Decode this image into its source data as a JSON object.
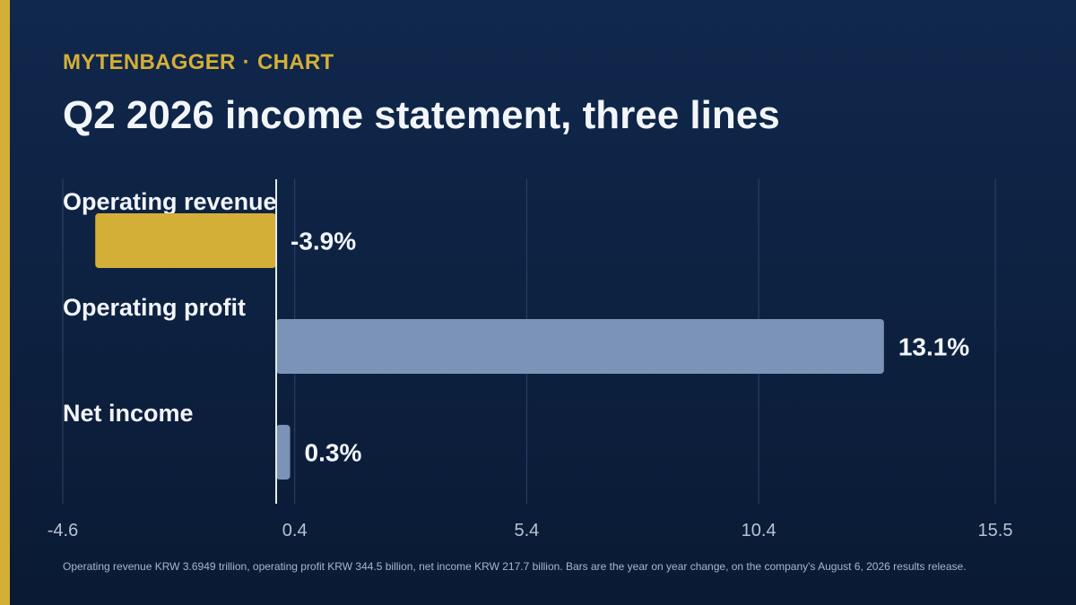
{
  "header": {
    "brand": "MYTENBAGGER",
    "separator": "·",
    "section": "CHART",
    "title": "Q2 2026 income statement, three lines"
  },
  "footnote": "Operating revenue KRW 3.6949 trillion, operating profit KRW 344.5 billion, net income KRW 217.7 billion. Bars are the year on year change, on the company's August 6, 2026 results release.",
  "colors": {
    "background_top": "#10284d",
    "background_bottom": "#0a1a34",
    "accent": "#d4af37",
    "bar_default": "#7b93b6",
    "text": "#f2f5fa",
    "axis_text": "#b8c3d3",
    "grid": "#2e4468"
  },
  "chart_data": {
    "type": "bar",
    "orientation": "horizontal",
    "unit": "%",
    "categories": [
      "Operating revenue",
      "Operating profit",
      "Net income"
    ],
    "values": [
      -3.9,
      13.1,
      0.3
    ],
    "data_labels": [
      "-3.9%",
      "13.1%",
      "0.3%"
    ],
    "highlight_index": 0,
    "xlim": [
      -4.6,
      15.5
    ],
    "xticks": [
      -4.6,
      0.4,
      5.4,
      10.4,
      15.5
    ],
    "xtick_labels": [
      "-4.6",
      "0.4",
      "5.4",
      "10.4",
      "15.5"
    ],
    "grid": true,
    "zero_line": true,
    "legend": "none"
  }
}
